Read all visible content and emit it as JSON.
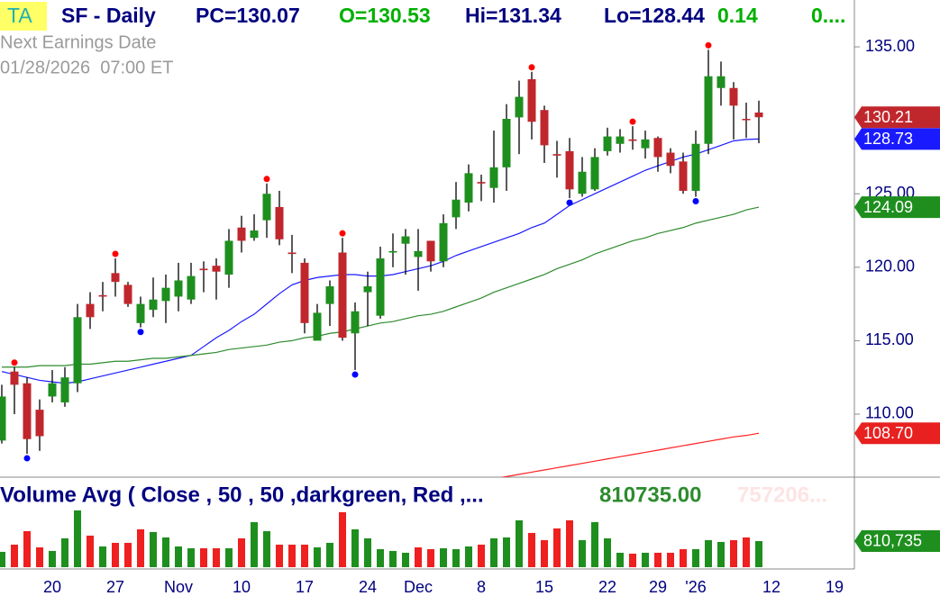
{
  "header": {
    "badge": "TA",
    "symbol": "SF - Daily",
    "pc": "PC=130.07",
    "open": "O=130.53",
    "high": "Hi=131.34",
    "low": "Lo=128.44",
    "change": "0.14",
    "change_pct": "0...."
  },
  "earnings": {
    "label": "Next Earnings Date",
    "date": "01/28/2026  07:00 ET"
  },
  "chart_data": [
    {
      "type": "candlestick",
      "categories": [
        null,
        null,
        null,
        null,
        "20",
        null,
        null,
        null,
        null,
        "27",
        null,
        null,
        null,
        null,
        "Nov",
        null,
        null,
        null,
        null,
        "10",
        null,
        null,
        null,
        null,
        "17",
        null,
        null,
        null,
        null,
        "24",
        null,
        null,
        null,
        "Dec",
        null,
        null,
        null,
        null,
        "8",
        null,
        null,
        null,
        null,
        "15",
        null,
        null,
        null,
        null,
        "22",
        null,
        null,
        null,
        "29",
        null,
        null,
        "'26",
        null,
        null,
        null,
        null,
        null,
        "12",
        null,
        null,
        null,
        null,
        "19"
      ],
      "open": [
        108.2,
        112.9,
        112.1,
        110.3,
        111.2,
        110.8,
        112.1,
        117.5,
        118.1,
        119.6,
        118.8,
        116.2,
        117.1,
        117.7,
        118,
        117.8,
        119.9,
        120.1,
        119.5,
        122.7,
        122,
        123.2,
        124.1,
        121,
        120.3,
        115,
        117.5,
        121,
        115.5,
        118.3,
        116.7,
        121,
        121.6,
        120.7,
        121.8,
        120.4,
        123.4,
        124.4,
        125.8,
        125.4,
        126.8,
        130.2,
        132.8,
        130.7,
        127.7,
        127.9,
        125,
        125.3,
        127.9,
        128.4,
        128.7,
        128.1,
        128.8,
        127.8,
        127.2,
        125.2,
        128.4,
        132.2,
        132.2,
        130.1,
        130.53,
        null,
        null,
        null,
        null,
        null,
        null
      ],
      "high": [
        112,
        113.2,
        112.5,
        111,
        113,
        113.2,
        117.5,
        118.3,
        119,
        120.6,
        119,
        118,
        119.3,
        119.5,
        120.3,
        120.3,
        120.4,
        120.6,
        122.6,
        123.5,
        123.6,
        125.7,
        125.2,
        122.2,
        120.6,
        117.5,
        119.1,
        122,
        117.6,
        119.7,
        121.4,
        122.3,
        122.6,
        122.6,
        121.8,
        123.6,
        125.8,
        127,
        126.3,
        129.3,
        131.1,
        132.7,
        133.3,
        131,
        128.6,
        128.8,
        127.5,
        128.1,
        129.5,
        129.4,
        129.6,
        129.3,
        128.9,
        128.1,
        127.8,
        129.3,
        134.8,
        134,
        132.6,
        131.2,
        131.34,
        null,
        null,
        null,
        null,
        null,
        null
      ],
      "low": [
        108,
        110,
        107.3,
        107.5,
        110.8,
        110.5,
        111.5,
        115.8,
        117,
        118,
        117.3,
        115.9,
        116.6,
        116.2,
        117,
        117.5,
        118.3,
        117.8,
        118.6,
        121,
        121.8,
        122,
        121.5,
        119.6,
        115.5,
        115.1,
        116,
        115,
        113,
        116,
        116.5,
        120,
        119.5,
        118.4,
        119.7,
        120,
        122.6,
        123.8,
        124.5,
        124.4,
        125.2,
        127.7,
        128.7,
        127.1,
        126.1,
        124.7,
        124.8,
        125.2,
        127.6,
        127.8,
        128,
        127.4,
        126.5,
        126.4,
        125,
        124.8,
        127.7,
        131,
        128.7,
        128.8,
        128.44,
        null,
        null,
        null,
        null,
        null,
        null
      ],
      "close": [
        111.2,
        112,
        108.3,
        108.5,
        112.1,
        112.5,
        116.6,
        116.6,
        118,
        119,
        117.5,
        117.5,
        117.8,
        118.6,
        119.1,
        119.4,
        119.8,
        119.7,
        121.8,
        121.8,
        122.5,
        125,
        121.9,
        120.9,
        116.2,
        116.9,
        118.7,
        115.2,
        117,
        118.7,
        120.6,
        121.1,
        122.1,
        121.1,
        120.4,
        123,
        124.6,
        126.4,
        125.7,
        126.8,
        130.1,
        131.6,
        129.9,
        128.3,
        127.6,
        125.3,
        126.5,
        127.5,
        128.9,
        128.9,
        128.6,
        128.7,
        127.5,
        126.9,
        125.2,
        128.4,
        133,
        133,
        131,
        130.07,
        130.21,
        null,
        null,
        null,
        null,
        null,
        null
      ],
      "up_color": "#1e8f1e",
      "down_color": "#c0272d",
      "wick_color": "#000000",
      "pivot_high_color": "#ff0000",
      "pivot_low_color": "#0000ff",
      "series": [
        {
          "color": "#1a1aff",
          "values": [
            112.9,
            112.7,
            112.5,
            112.3,
            112.2,
            112.1,
            112.2,
            112.4,
            112.6,
            112.8,
            113.0,
            113.2,
            113.4,
            113.6,
            113.8,
            114.0,
            114.6,
            115.2,
            115.7,
            116.3,
            116.8,
            117.5,
            118.2,
            118.8,
            119.1,
            119.3,
            119.4,
            119.5,
            119.5,
            119.4,
            119.4,
            119.5,
            119.7,
            119.9,
            120.1,
            120.4,
            120.8,
            121.1,
            121.4,
            121.7,
            122.0,
            122.3,
            122.7,
            123.0,
            123.6,
            124.2,
            124.6,
            125.0,
            125.4,
            125.8,
            126.2,
            126.6,
            126.9,
            127.2,
            127.5,
            127.7,
            128.0,
            128.3,
            128.6,
            128.7,
            128.73,
            null,
            null,
            null,
            null,
            null,
            null
          ]
        },
        {
          "color": "#2e8b2e",
          "values": [
            113.2,
            113.2,
            113.2,
            113.3,
            113.3,
            113.3,
            113.4,
            113.4,
            113.5,
            113.6,
            113.6,
            113.7,
            113.8,
            113.8,
            113.9,
            114.0,
            114.1,
            114.2,
            114.4,
            114.5,
            114.6,
            114.7,
            114.9,
            115.0,
            115.2,
            115.3,
            115.5,
            115.6,
            115.8,
            116.0,
            116.2,
            116.3,
            116.5,
            116.7,
            116.8,
            117.0,
            117.3,
            117.6,
            117.9,
            118.3,
            118.6,
            118.9,
            119.2,
            119.5,
            119.9,
            120.2,
            120.5,
            120.9,
            121.2,
            121.5,
            121.8,
            122.0,
            122.3,
            122.5,
            122.7,
            123.0,
            123.2,
            123.4,
            123.6,
            123.9,
            124.09,
            null,
            null,
            null,
            null,
            null,
            null
          ]
        },
        {
          "color": "#ff2020",
          "values": [
            null,
            null,
            null,
            null,
            null,
            null,
            null,
            null,
            null,
            null,
            null,
            null,
            null,
            null,
            null,
            null,
            null,
            null,
            null,
            null,
            null,
            null,
            null,
            null,
            null,
            null,
            null,
            null,
            null,
            null,
            null,
            null,
            null,
            null,
            null,
            null,
            null,
            null,
            null,
            105.6,
            105.75,
            105.9,
            106.05,
            106.2,
            106.35,
            106.5,
            106.65,
            106.8,
            106.95,
            107.1,
            107.25,
            107.4,
            107.55,
            107.7,
            107.85,
            108.0,
            108.15,
            108.3,
            108.45,
            108.55,
            108.7,
            null,
            null,
            null,
            null,
            null,
            null
          ]
        }
      ],
      "ylim": [
        105.71,
        138.19
      ],
      "yticks": [
        {
          "value": 110,
          "label": "110.00"
        },
        {
          "value": 115,
          "label": "115.00"
        },
        {
          "value": 120,
          "label": "120.00"
        },
        {
          "value": 125,
          "label": "125.00"
        },
        {
          "value": 135,
          "label": "135.00"
        }
      ],
      "tags": [
        {
          "value": 130.21,
          "label": "130.21",
          "color": "#c0272d"
        },
        {
          "value": 128.73,
          "label": "128.73",
          "color": "#1a1aff"
        },
        {
          "value": 124.09,
          "label": "124.09",
          "color": "#1e8f1e"
        },
        {
          "value": 108.7,
          "label": "108.70",
          "color": "#e82020"
        }
      ]
    },
    {
      "type": "bar",
      "title": "Volume Avg ( Close , 50 , 50 ,darkgreen, Red ,...",
      "annotations": [
        "810735.00",
        "757206..."
      ],
      "values": [
        476000,
        700000,
        1120000,
        616000,
        504000,
        896000,
        1764000,
        980000,
        644000,
        756000,
        756000,
        1176000,
        1092000,
        924000,
        644000,
        588000,
        588000,
        588000,
        588000,
        896000,
        1400000,
        1120000,
        700000,
        700000,
        700000,
        616000,
        756000,
        1708000,
        1176000,
        896000,
        560000,
        504000,
        448000,
        616000,
        560000,
        588000,
        560000,
        644000,
        700000,
        896000,
        924000,
        1456000,
        1064000,
        840000,
        1204000,
        1456000,
        840000,
        1400000,
        896000,
        448000,
        420000,
        448000,
        448000,
        448000,
        560000,
        560000,
        840000,
        784000,
        840000,
        924000,
        810735
      ],
      "colors": [
        "#1e8f1e",
        "#ee2020",
        "#ee2020",
        "#ee2020",
        "#1e8f1e",
        "#1e8f1e",
        "#1e8f1e",
        "#ee2020",
        "#1e8f1e",
        "#ee2020",
        "#ee2020",
        "#ee2020",
        "#1e8f1e",
        "#1e8f1e",
        "#1e8f1e",
        "#1e8f1e",
        "#ee2020",
        "#ee2020",
        "#1e8f1e",
        "#ee2020",
        "#1e8f1e",
        "#1e8f1e",
        "#ee2020",
        "#ee2020",
        "#ee2020",
        "#1e8f1e",
        "#1e8f1e",
        "#ee2020",
        "#1e8f1e",
        "#1e8f1e",
        "#1e8f1e",
        "#1e8f1e",
        "#1e8f1e",
        "#ee2020",
        "#ee2020",
        "#1e8f1e",
        "#1e8f1e",
        "#1e8f1e",
        "#ee2020",
        "#1e8f1e",
        "#1e8f1e",
        "#1e8f1e",
        "#ee2020",
        "#ee2020",
        "#ee2020",
        "#ee2020",
        "#1e8f1e",
        "#1e8f1e",
        "#1e8f1e",
        "#1e8f1e",
        "#ee2020",
        "#1e8f1e",
        "#ee2020",
        "#ee2020",
        "#ee2020",
        "#1e8f1e",
        "#1e8f1e",
        "#1e8f1e",
        "#ee2020",
        "#ee2020",
        "#1e8f1e"
      ],
      "ylim": [
        0,
        2795600
      ],
      "tags": [
        {
          "value": 810735,
          "label": "810,735",
          "color": "#1e8f1e"
        }
      ]
    }
  ]
}
